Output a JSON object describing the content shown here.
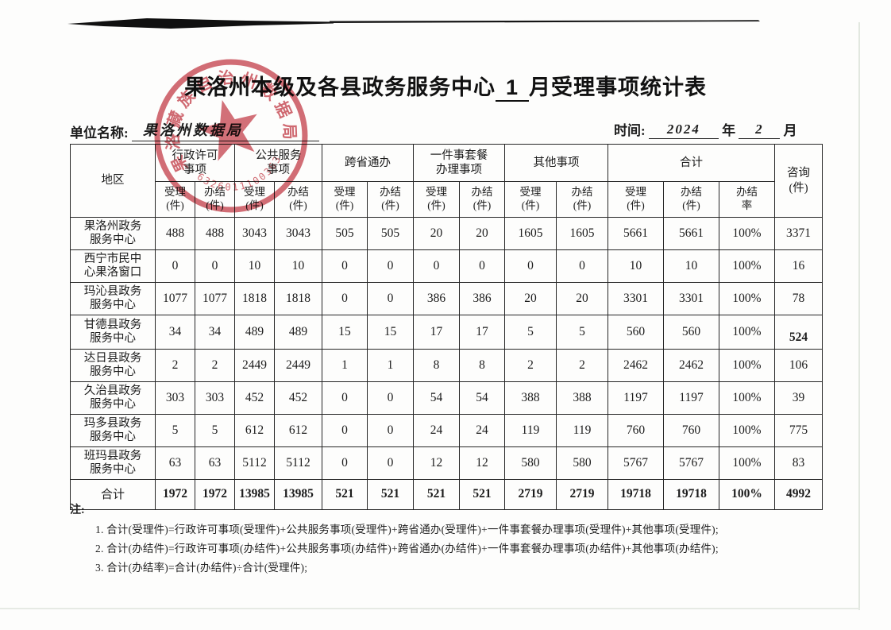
{
  "page": {
    "title_prefix": "果洛州本级及各县政务服务中心",
    "title_month": "1",
    "title_suffix": "月受理事项统计表",
    "unit_label": "单位名称:",
    "unit_value": "果洛州数据局",
    "time_label": "时间:",
    "time_year": "2024",
    "year_unit": "年",
    "time_month": "2",
    "month_unit": "月"
  },
  "seal": {
    "ring_text": "果洛藏族自治州数据局",
    "code": "6326011100363",
    "color": "#c5404b"
  },
  "table": {
    "header": {
      "region": "地区",
      "groups": [
        {
          "label": "行政许可\n事项",
          "span": 2
        },
        {
          "label": "公共服务\n事项",
          "span": 2
        },
        {
          "label": "跨省通办",
          "span": 2
        },
        {
          "label": "一件事套餐\n办理事项",
          "span": 2
        },
        {
          "label": "其他事项",
          "span": 2
        },
        {
          "label": "合计",
          "span": 3
        }
      ],
      "subs": [
        "受理\n(件)",
        "办结\n(件)",
        "受理\n(件)",
        "办结\n(件)",
        "受理\n(件)",
        "办结\n(件)",
        "受理\n(件)",
        "办结\n(件)",
        "受理\n(件)",
        "办结\n(件)",
        "受理\n(件)",
        "办结\n(件)",
        "办结\n率"
      ],
      "consult": "咨询\n(件)"
    },
    "rows": [
      {
        "name": "果洛州政务\n服务中心",
        "values": [
          "488",
          "488",
          "3043",
          "3043",
          "505",
          "505",
          "20",
          "20",
          "1605",
          "1605",
          "5661",
          "5661",
          "100%",
          "3371"
        ]
      },
      {
        "name": "西宁市民中\n心果洛窗口",
        "values": [
          "0",
          "0",
          "10",
          "10",
          "0",
          "0",
          "0",
          "0",
          "0",
          "0",
          "10",
          "10",
          "100%",
          "16"
        ]
      },
      {
        "name": "玛沁县政务\n服务中心",
        "values": [
          "1077",
          "1077",
          "1818",
          "1818",
          "0",
          "0",
          "386",
          "386",
          "20",
          "20",
          "3301",
          "3301",
          "100%",
          "78"
        ]
      },
      {
        "name": "甘德县政务\n服务中心",
        "values": [
          "34",
          "34",
          "489",
          "489",
          "15",
          "15",
          "17",
          "17",
          "5",
          "5",
          "560",
          "560",
          "100%",
          "524"
        ],
        "consult_offset": true
      },
      {
        "name": "达日县政务\n服务中心",
        "values": [
          "2",
          "2",
          "2449",
          "2449",
          "1",
          "1",
          "8",
          "8",
          "2",
          "2",
          "2462",
          "2462",
          "100%",
          "106"
        ]
      },
      {
        "name": "久治县政务\n服务中心",
        "values": [
          "303",
          "303",
          "452",
          "452",
          "0",
          "0",
          "54",
          "54",
          "388",
          "388",
          "1197",
          "1197",
          "100%",
          "39"
        ]
      },
      {
        "name": "玛多县政务\n服务中心",
        "values": [
          "5",
          "5",
          "612",
          "612",
          "0",
          "0",
          "24",
          "24",
          "119",
          "119",
          "760",
          "760",
          "100%",
          "775"
        ]
      },
      {
        "name": "班玛县政务\n服务中心",
        "values": [
          "63",
          "63",
          "5112",
          "5112",
          "0",
          "0",
          "12",
          "12",
          "580",
          "580",
          "5767",
          "5767",
          "100%",
          "83"
        ]
      },
      {
        "name": "合计",
        "values": [
          "1972",
          "1972",
          "13985",
          "13985",
          "521",
          "521",
          "521",
          "521",
          "2719",
          "2719",
          "19718",
          "19718",
          "100%",
          "4992"
        ],
        "is_total": true
      }
    ]
  },
  "notes": {
    "label": "注:",
    "items": [
      "1.   合计(受理件)=行政许可事项(受理件)+公共服务事项(受理件)+跨省通办(受理件)+一件事套餐办理事项(受理件)+其他事项(受理件);",
      "2.   合计(办结件)=行政许可事项(办结件)+公共服务事项(办结件)+跨省通办(办结件)+一件事套餐办理事项(办结件)+其他事项(办结件);",
      "3.   合计(办结率)=合计(办结件)÷合计(受理件);"
    ]
  }
}
